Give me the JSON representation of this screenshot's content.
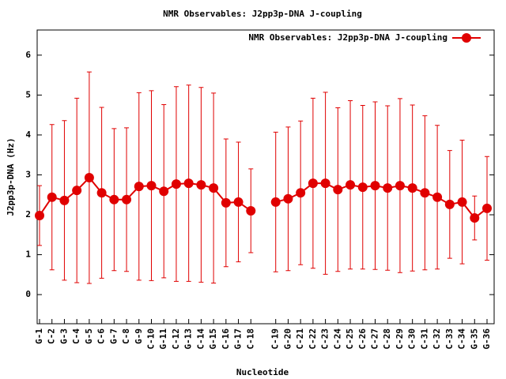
{
  "chart_data": {
    "type": "line",
    "title": "NMR Observables: J2pp3p-DNA J-coupling",
    "xlabel": "Nucleotide",
    "ylabel": "J2pp3p-DNA (Hz)",
    "categories": [
      "G-1",
      "C-2",
      "G-3",
      "C-4",
      "G-5",
      "C-6",
      "G-7",
      "C-8",
      "G-9",
      "C-10",
      "G-11",
      "C-12",
      "G-13",
      "C-14",
      "G-15",
      "C-16",
      "G-17",
      "C-18",
      null,
      "C-19",
      "G-20",
      "C-21",
      "C-22",
      "C-23",
      "C-24",
      "C-25",
      "C-26",
      "C-27",
      "C-28",
      "C-29",
      "C-30",
      "C-31",
      "C-32",
      "C-33",
      "C-34",
      "G-35",
      "G-36"
    ],
    "series": [
      {
        "name": "NMR Observables: J2pp3p-DNA J-coupling",
        "color": "#e00000",
        "values": [
          1.98,
          2.44,
          2.36,
          2.61,
          2.93,
          2.55,
          2.38,
          2.38,
          2.71,
          2.73,
          2.59,
          2.77,
          2.79,
          2.75,
          2.67,
          2.3,
          2.32,
          2.1,
          null,
          2.32,
          2.4,
          2.55,
          2.79,
          2.79,
          2.63,
          2.75,
          2.69,
          2.73,
          2.67,
          2.73,
          2.67,
          2.55,
          2.44,
          2.26,
          2.32,
          1.92,
          2.16
        ],
        "errors": [
          0.75,
          1.82,
          2.0,
          2.31,
          2.65,
          2.14,
          1.78,
          1.8,
          2.35,
          2.38,
          2.17,
          2.44,
          2.46,
          2.44,
          2.38,
          1.6,
          1.5,
          1.05,
          null,
          1.75,
          1.8,
          1.8,
          2.13,
          2.28,
          2.05,
          2.11,
          2.05,
          2.1,
          2.06,
          2.18,
          2.08,
          1.93,
          1.8,
          1.35,
          1.55,
          0.55,
          1.3
        ]
      }
    ],
    "ylim": [
      -0.73,
      6.63
    ],
    "yticks": [
      0,
      1,
      2,
      3,
      4,
      5,
      6
    ],
    "legend": "top right"
  }
}
